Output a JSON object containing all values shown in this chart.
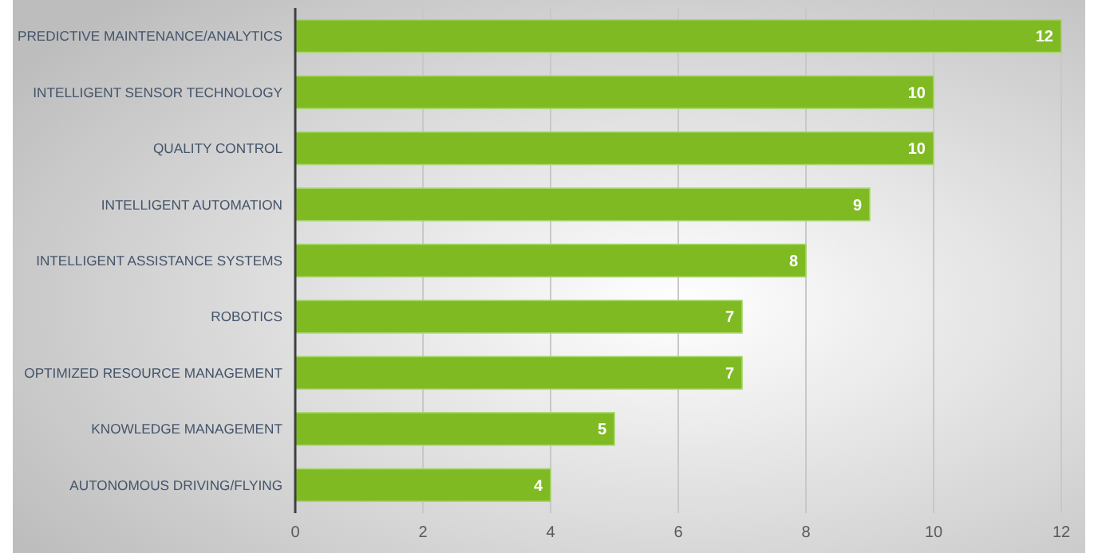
{
  "chart_data": {
    "type": "bar",
    "orientation": "horizontal",
    "categories": [
      "PREDICTIVE MAINTENANCE/ANALYTICS",
      "INTELLIGENT SENSOR TECHNOLOGY",
      "QUALITY CONTROL",
      "INTELLIGENT AUTOMATION",
      "INTELLIGENT ASSISTANCE SYSTEMS",
      "ROBOTICS",
      "OPTIMIZED RESOURCE MANAGEMENT",
      "KNOWLEDGE MANAGEMENT",
      "AUTONOMOUS DRIVING/FLYING"
    ],
    "values": [
      12,
      10,
      10,
      9,
      8,
      7,
      7,
      5,
      4
    ],
    "color": "#7fba23",
    "xlim": [
      0,
      12
    ],
    "xticks": [
      0,
      2,
      4,
      6,
      8,
      10,
      12
    ],
    "grid": "x",
    "data_labels": true
  }
}
